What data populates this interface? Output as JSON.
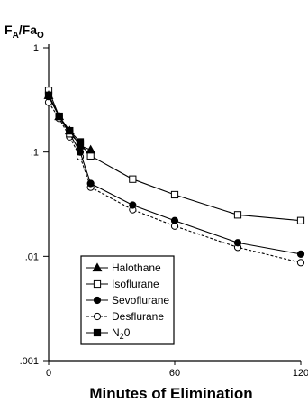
{
  "chart_data": {
    "type": "line",
    "ylabel": {
      "main": "F",
      "sub1": "A",
      "slash": "/Fa",
      "sub2": "O"
    },
    "xlabel": "Minutes of Elimination",
    "xlim": [
      0,
      120
    ],
    "ylim": [
      0.001,
      1
    ],
    "yscale": "log",
    "xticks": [
      0,
      60,
      120
    ],
    "xtick_labels": [
      "0",
      "60",
      "120"
    ],
    "yticks": [
      0.001,
      0.01,
      0.1,
      1
    ],
    "ytick_labels": [
      ".001",
      ".01",
      ".1",
      "1"
    ],
    "grid": false,
    "legend_position": "bottom-left",
    "series": [
      {
        "name": "Halothane",
        "marker": "triangle-filled",
        "line": "solid",
        "x": [
          0,
          5,
          10,
          15,
          20
        ],
        "y": [
          0.35,
          0.22,
          0.16,
          0.115,
          0.105
        ]
      },
      {
        "name": "Isoflurane",
        "marker": "square-open",
        "line": "solid",
        "x": [
          0,
          5,
          10,
          15,
          20,
          40,
          60,
          90,
          120
        ],
        "y": [
          0.39,
          0.22,
          0.15,
          0.12,
          0.092,
          0.055,
          0.039,
          0.025,
          0.022
        ]
      },
      {
        "name": "Sevoflurane",
        "marker": "circle-filled",
        "line": "solid",
        "x": [
          0,
          5,
          10,
          15,
          20,
          40,
          60,
          90,
          120
        ],
        "y": [
          0.34,
          0.22,
          0.15,
          0.1,
          0.05,
          0.031,
          0.022,
          0.0135,
          0.0105
        ]
      },
      {
        "name": "Desflurane",
        "marker": "circle-open",
        "line": "dashed",
        "x": [
          0,
          5,
          10,
          15,
          20,
          40,
          60,
          90,
          120
        ],
        "y": [
          0.3,
          0.21,
          0.14,
          0.09,
          0.046,
          0.028,
          0.0195,
          0.0122,
          0.0087
        ]
      },
      {
        "name": "N",
        "name_sub": "2",
        "name_rest": "0",
        "marker": "square-filled",
        "line": "solid",
        "x": [
          0,
          5,
          10,
          15
        ],
        "y": [
          0.35,
          0.22,
          0.16,
          0.125
        ]
      }
    ]
  }
}
